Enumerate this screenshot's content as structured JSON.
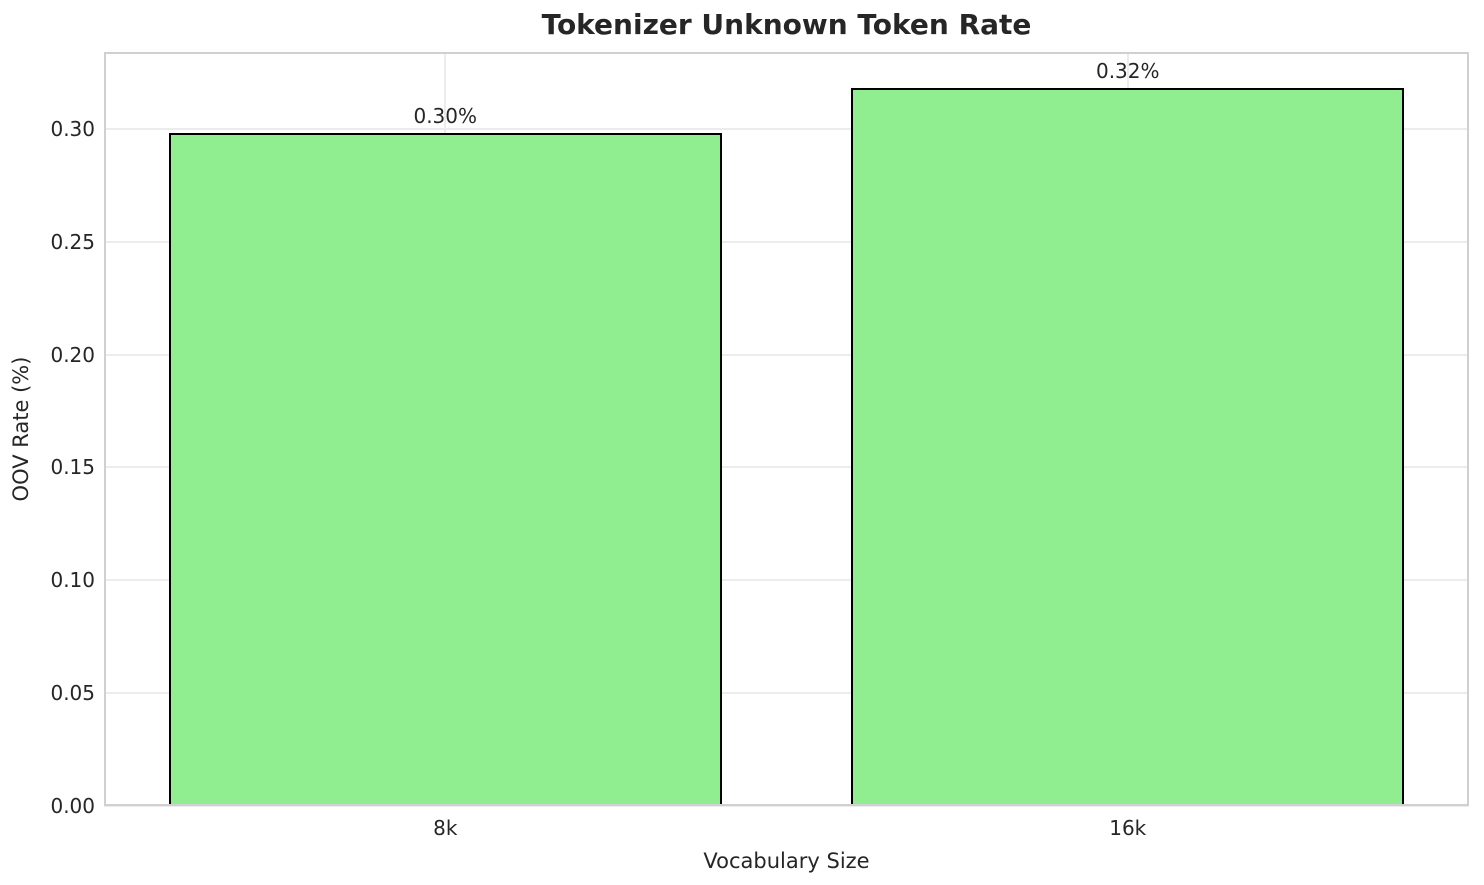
{
  "chart_data": {
    "type": "bar",
    "title": "Tokenizer Unknown Token Rate",
    "xlabel": "Vocabulary Size",
    "ylabel": "OOV Rate (%)",
    "categories": [
      "8k",
      "16k"
    ],
    "values": [
      0.298,
      0.318
    ],
    "bar_labels": [
      "0.30%",
      "0.32%"
    ],
    "ylim": [
      0,
      0.334
    ],
    "yticks": [
      0,
      0.05,
      0.1,
      0.15,
      0.2,
      0.25,
      0.3
    ],
    "ytick_labels": [
      "0.00",
      "0.05",
      "0.10",
      "0.15",
      "0.20",
      "0.25",
      "0.30"
    ],
    "grid": "both",
    "legend": false,
    "bar_width_fraction": 0.405,
    "colors": {
      "bar_fill": "#90EE90",
      "bar_edge": "#000000",
      "grid": "#ececec",
      "spine": "#d0d0d0",
      "text": "#262626",
      "background": "#ffffff"
    }
  }
}
